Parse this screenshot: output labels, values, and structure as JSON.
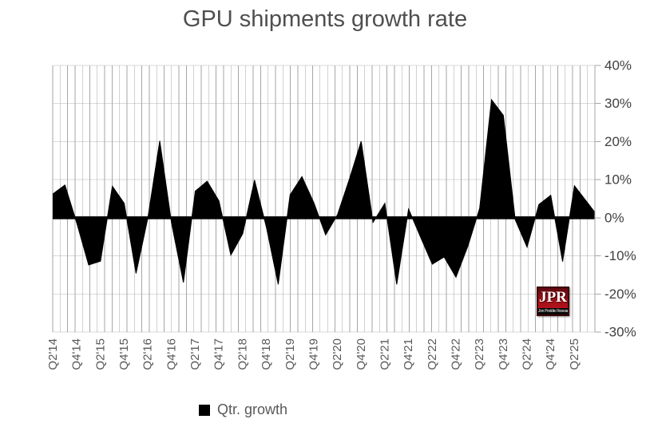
{
  "chart_data": {
    "type": "area",
    "title": "GPU shipments growth rate",
    "legend": "Qtr. growth",
    "series_name": "Qtr. growth",
    "categories": [
      "Q2'14",
      "Q3'14",
      "Q4'14",
      "Q1'15",
      "Q2'15",
      "Q3'15",
      "Q4'15",
      "Q1'16",
      "Q2'16",
      "Q3'16",
      "Q4'16",
      "Q1'17",
      "Q2'17",
      "Q3'17",
      "Q4'17",
      "Q1'18",
      "Q2'18",
      "Q3'18",
      "Q4'18",
      "Q1'19",
      "Q2'19",
      "Q3'19",
      "Q4'19",
      "Q1'20",
      "Q2'20",
      "Q3'20",
      "Q4'20",
      "Q1'21",
      "Q2'21",
      "Q3'21",
      "Q4'21",
      "Q1'22",
      "Q2'22",
      "Q3'22",
      "Q4'22",
      "Q1'23",
      "Q2'23",
      "Q3'23",
      "Q4'23",
      "Q1'24",
      "Q2'24",
      "Q3'24",
      "Q4'24",
      "Q1'25",
      "Q2'25"
    ],
    "values": [
      6.3,
      8.6,
      -1.4,
      -12.4,
      -11.4,
      8.3,
      3.8,
      -14.6,
      0.0,
      20.2,
      -1.5,
      -17.0,
      7.0,
      9.6,
      4.4,
      -9.8,
      -4.2,
      9.9,
      -2.5,
      -17.5,
      6.0,
      10.8,
      4.0,
      -4.5,
      0.8,
      10.1,
      20.1,
      -1.2,
      3.8,
      -17.5,
      2.3,
      -5.0,
      -12.2,
      -10.3,
      -15.6,
      -7.5,
      2.5,
      31.0,
      26.9,
      -0.5,
      -7.7,
      3.5,
      5.9,
      -11.5,
      8.4
    ],
    "area_right_edge_value": 1.7,
    "x_tick_labels": [
      "Q2'14",
      "Q4'14",
      "Q2'15",
      "Q4'15",
      "Q2'16",
      "Q4'16",
      "Q2'17",
      "Q4'17",
      "Q2'18",
      "Q4'18",
      "Q2'19",
      "Q4'19",
      "Q2'20",
      "Q4'20",
      "Q2'21",
      "Q4'21",
      "Q2'22",
      "Q4'22",
      "Q2'23",
      "Q4'23",
      "Q2'24",
      "Q4'24",
      "Q2'25"
    ],
    "yticks": [
      "40%",
      "30%",
      "20%",
      "10%",
      "0%",
      "-10%",
      "-20%",
      "-30%"
    ],
    "ylim": [
      -30,
      40
    ],
    "ytick_step": 10,
    "grid": "both",
    "legend_position": "bottom",
    "colors": {
      "series": "#000000",
      "zero_line": "#000000",
      "grid_vertical": "#a6a6a6",
      "grid_horizontal": "#d9d9d9",
      "axis": "#a6a6a6",
      "title_text": "#4f4f4f",
      "x_label_text": "#595959",
      "y_label_text": "#404040"
    }
  },
  "logo": {
    "abbr": "JPR",
    "name": "Jon Peddie Research",
    "red": "#b5121b"
  }
}
